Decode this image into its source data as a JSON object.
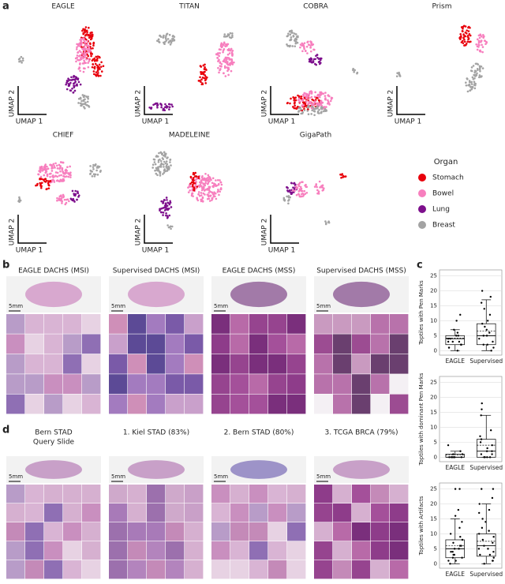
{
  "panel_labels": [
    "a",
    "b",
    "c",
    "d"
  ],
  "umap": {
    "titles": [
      "EAGLE",
      "TITAN",
      "COBRA",
      "Prism",
      "CHIEF",
      "MADELEINE",
      "GigaPath"
    ],
    "x_label": "UMAP 1",
    "y_label": "UMAP 2",
    "legend_title": "Organ",
    "legend": [
      {
        "name": "Stomach",
        "color": "#e8000b"
      },
      {
        "name": "Bowel",
        "color": "#f77fbe"
      },
      {
        "name": "Lung",
        "color": "#7d0f8c"
      },
      {
        "name": "Breast",
        "color": "#a3a3a3"
      }
    ]
  },
  "retrieval_b": {
    "titles": [
      "EAGLE DACHS (MSI)",
      "Supervised DACHS (MSI)",
      "EAGLE DACHS (MSS)",
      "Supervised DACHS (MSS)"
    ],
    "scale_bar": "5mm"
  },
  "retrieval_d": {
    "titles": [
      [
        "Bern STAD",
        "Query Slide"
      ],
      [
        "1. Kiel STAD (83%)"
      ],
      [
        "2. Bern STAD (80%)"
      ],
      [
        "3. TCGA BRCA (79%)"
      ]
    ],
    "scale_bar": "5mm"
  },
  "chart_data": [
    {
      "type": "box",
      "y_label": "Toptiles with Pen Marks",
      "categories": [
        "EAGLE",
        "Supervised"
      ],
      "ylim": [
        -1.5,
        27
      ],
      "yticks": [
        0,
        5,
        10,
        15,
        20,
        25
      ],
      "grid": true,
      "boxes": [
        {
          "whislo": 0,
          "q1": 2,
          "median": 4,
          "mean": 4.2,
          "q3": 5,
          "whishi": 7
        },
        {
          "whislo": 0,
          "q1": 2,
          "median": 5,
          "mean": 6.5,
          "q3": 9,
          "whishi": 17
        }
      ],
      "points": [
        [
          0,
          1,
          1,
          2,
          2,
          3,
          3,
          3,
          4,
          4,
          5,
          5,
          6,
          7,
          10,
          12
        ],
        [
          0,
          1,
          2,
          2,
          3,
          4,
          5,
          5,
          6,
          7,
          8,
          9,
          10,
          12,
          14,
          16,
          18,
          20
        ]
      ]
    },
    {
      "type": "box",
      "y_label": "Toptiles with dominant Pen Marks",
      "categories": [
        "EAGLE",
        "Supervised"
      ],
      "ylim": [
        -1.5,
        27
      ],
      "yticks": [
        0,
        5,
        10,
        15,
        20,
        25
      ],
      "grid": true,
      "boxes": [
        {
          "whislo": 0,
          "q1": 0,
          "median": 0,
          "mean": 0.8,
          "q3": 1,
          "whishi": 2
        },
        {
          "whislo": 0,
          "q1": 0,
          "median": 2,
          "mean": 4,
          "q3": 6,
          "whishi": 14
        }
      ],
      "points": [
        [
          0,
          0,
          0,
          0,
          0,
          0,
          1,
          1,
          2,
          4
        ],
        [
          0,
          0,
          0,
          0,
          1,
          1,
          2,
          2,
          3,
          4,
          5,
          6,
          7,
          9,
          14,
          16,
          18
        ]
      ]
    },
    {
      "type": "box",
      "y_label": "Toptiles with Artifacts",
      "categories": [
        "EAGLE",
        "Supervised"
      ],
      "ylim": [
        -1.5,
        27
      ],
      "yticks": [
        0,
        5,
        10,
        15,
        20,
        25
      ],
      "grid": true,
      "boxes": [
        {
          "whislo": 0,
          "q1": 2,
          "median": 5,
          "mean": 6,
          "q3": 8,
          "whishi": 15
        },
        {
          "whislo": 0,
          "q1": 2.5,
          "median": 6,
          "mean": 7.5,
          "q3": 10,
          "whishi": 20
        }
      ],
      "points": [
        [
          0,
          1,
          1,
          2,
          2,
          3,
          3,
          4,
          4,
          5,
          5,
          6,
          6,
          7,
          8,
          9,
          10,
          12,
          14,
          16,
          18,
          25,
          25
        ],
        [
          0,
          1,
          1,
          2,
          3,
          3,
          4,
          5,
          5,
          6,
          7,
          8,
          9,
          10,
          11,
          12,
          14,
          15,
          17,
          18,
          20,
          22,
          25,
          25
        ]
      ]
    }
  ]
}
